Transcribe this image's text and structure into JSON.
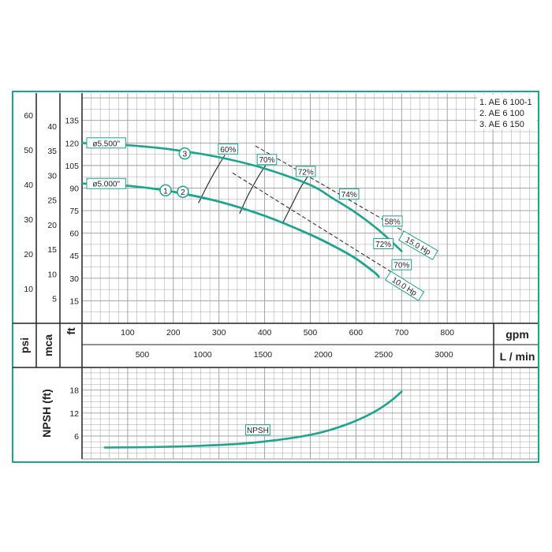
{
  "chart_data": {
    "type": "line",
    "legend": {
      "items": [
        "1. AE 6 100-1",
        "2. AE 6 100",
        "3. AE 6 150"
      ],
      "placement": "top-right"
    },
    "axes": {
      "x_gpm": {
        "label": "gpm",
        "range": [
          0,
          900
        ],
        "ticks": [
          100,
          200,
          300,
          400,
          500,
          600,
          700,
          800
        ]
      },
      "x_lmin": {
        "label": "L / min",
        "ticks": [
          500,
          1000,
          1500,
          2000,
          2500,
          3000
        ]
      },
      "y_ft": {
        "label": "ft",
        "range": [
          0,
          150
        ],
        "ticks": [
          15,
          30,
          45,
          60,
          75,
          90,
          105,
          120,
          135
        ]
      },
      "y_mca": {
        "label": "mca",
        "ticks": [
          5,
          10,
          15,
          20,
          25,
          30,
          35,
          40
        ]
      },
      "y_psi": {
        "label": "psi",
        "ticks": [
          10,
          20,
          30,
          40,
          50,
          60
        ]
      },
      "npsh_y": {
        "label": "NPSH (ft)",
        "range": [
          0,
          24
        ],
        "ticks": [
          6,
          12,
          18
        ]
      }
    },
    "impeller_labels": [
      {
        "text": "ø5.500\"",
        "gpm": 15,
        "ft": 120
      },
      {
        "text": "ø5.000\"",
        "gpm": 15,
        "ft": 93
      }
    ],
    "series": [
      {
        "name": "3",
        "label_at": {
          "gpm": 225,
          "ft": 113
        },
        "color": "#1aa58e",
        "points": [
          [
            0,
            120
          ],
          [
            100,
            118.5
          ],
          [
            200,
            115.5
          ],
          [
            300,
            110.5
          ],
          [
            400,
            103
          ],
          [
            500,
            92
          ],
          [
            550,
            83
          ],
          [
            600,
            73.5
          ],
          [
            650,
            62
          ],
          [
            700,
            48
          ]
        ]
      },
      {
        "name": "1",
        "label_at": {
          "gpm": 183,
          "ft": 88.5
        },
        "color": "#1aa58e",
        "points": [
          [
            0,
            93
          ],
          [
            100,
            91.5
          ],
          [
            200,
            87.5
          ],
          [
            300,
            81
          ],
          [
            400,
            71.5
          ],
          [
            500,
            59
          ],
          [
            560,
            50
          ],
          [
            600,
            43
          ],
          [
            640,
            34
          ],
          [
            650,
            31
          ]
        ]
      },
      {
        "name": "2",
        "label_at": {
          "gpm": 221,
          "ft": 87.5
        },
        "color": "#1aa58e",
        "points": [
          [
            200,
            87.5
          ],
          [
            300,
            81
          ],
          [
            400,
            71.5
          ],
          [
            500,
            59
          ],
          [
            560,
            50
          ],
          [
            600,
            43
          ],
          [
            640,
            34
          ],
          [
            650,
            31
          ]
        ]
      }
    ],
    "efficiency_labels": [
      {
        "text": "60%",
        "gpm": 320,
        "ft": 116
      },
      {
        "text": "70%",
        "gpm": 405,
        "ft": 109
      },
      {
        "text": "72%",
        "gpm": 490,
        "ft": 101
      },
      {
        "text": "74%",
        "gpm": 585,
        "ft": 86
      },
      {
        "text": "58%",
        "gpm": 680,
        "ft": 68
      },
      {
        "text": "72%",
        "gpm": 660,
        "ft": 53
      },
      {
        "text": "70%",
        "gpm": 700,
        "ft": 39
      }
    ],
    "efficiency_curves": [
      [
        [
          255,
          80
        ],
        [
          275,
          92
        ],
        [
          295,
          103
        ],
        [
          313,
          112
        ]
      ],
      [
        [
          345,
          73
        ],
        [
          365,
          86
        ],
        [
          385,
          97
        ],
        [
          402,
          105
        ]
      ],
      [
        [
          440,
          67
        ],
        [
          460,
          79
        ],
        [
          478,
          90
        ],
        [
          495,
          98
        ]
      ]
    ],
    "power_lines": [
      {
        "label": "15.0 Hp",
        "start": {
          "gpm": 380,
          "ft": 118
        },
        "end": {
          "gpm": 740,
          "ft": 55
        }
      },
      {
        "label": "10.0 Hp",
        "start": {
          "gpm": 330,
          "ft": 100
        },
        "end": {
          "gpm": 710,
          "ft": 28
        }
      }
    ],
    "npsh": {
      "label": "NPSH",
      "points": [
        [
          50,
          3
        ],
        [
          150,
          3.1
        ],
        [
          250,
          3.4
        ],
        [
          350,
          4.0
        ],
        [
          430,
          5.0
        ],
        [
          500,
          6.3
        ],
        [
          560,
          8.2
        ],
        [
          610,
          10.5
        ],
        [
          650,
          13
        ],
        [
          680,
          15.5
        ],
        [
          700,
          17.6
        ]
      ]
    },
    "colors": {
      "curve": "#1aa58e",
      "frame": "#1aa58e",
      "grid": "#9a9a9a",
      "dashed": "#333333"
    }
  }
}
